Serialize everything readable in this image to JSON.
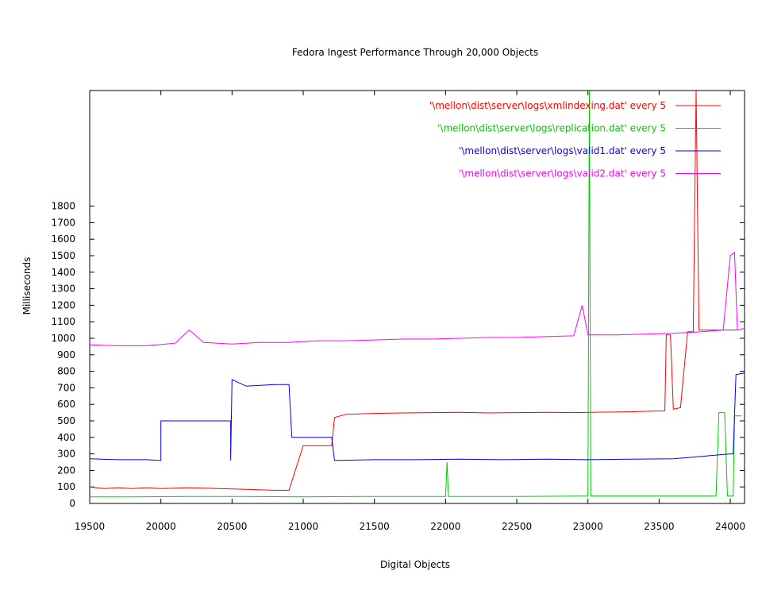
{
  "chart_data": {
    "type": "line",
    "title": "Fedora Ingest Performance Through 20,000 Objects",
    "xlabel": "Digital Objects",
    "ylabel": "Milliseconds",
    "xlim": [
      19500,
      24100
    ],
    "ylim": [
      0,
      2500
    ],
    "xticks": [
      19500,
      20000,
      20500,
      21000,
      21500,
      22000,
      22500,
      23000,
      23500,
      24000
    ],
    "yticks": [
      0,
      100,
      200,
      300,
      400,
      500,
      600,
      700,
      800,
      900,
      1000,
      1100,
      1200,
      1300,
      1400,
      1500,
      1600,
      1700,
      1800
    ],
    "grid": false,
    "legend_position": "top-right",
    "series": [
      {
        "name": "'\\mellon\\dist\\server\\logs\\xmlindexing.dat' every 5",
        "color": "#ff0000",
        "points": [
          [
            19500,
            100
          ],
          [
            19600,
            90
          ],
          [
            19700,
            95
          ],
          [
            19800,
            90
          ],
          [
            19900,
            95
          ],
          [
            20000,
            90
          ],
          [
            20200,
            95
          ],
          [
            20400,
            90
          ],
          [
            20600,
            85
          ],
          [
            20800,
            80
          ],
          [
            20900,
            80
          ],
          [
            21000,
            350
          ],
          [
            21100,
            350
          ],
          [
            21200,
            350
          ],
          [
            21220,
            520
          ],
          [
            21300,
            540
          ],
          [
            21500,
            545
          ],
          [
            21700,
            548
          ],
          [
            21900,
            550
          ],
          [
            22100,
            552
          ],
          [
            22300,
            548
          ],
          [
            22500,
            550
          ],
          [
            22700,
            552
          ],
          [
            22900,
            550
          ],
          [
            23100,
            553
          ],
          [
            23300,
            555
          ],
          [
            23500,
            560
          ],
          [
            23540,
            560
          ],
          [
            23550,
            1020
          ],
          [
            23580,
            1020
          ],
          [
            23600,
            570
          ],
          [
            23650,
            580
          ],
          [
            23700,
            1040
          ],
          [
            23740,
            1040
          ],
          [
            23760,
            2500
          ],
          [
            23780,
            1050
          ],
          [
            23900,
            1050
          ],
          [
            24050,
            1050
          ]
        ]
      },
      {
        "name": "'\\mellon\\dist\\server\\logs\\replication.dat' every 5",
        "color": "#00cc00",
        "points": [
          [
            19500,
            40
          ],
          [
            19800,
            40
          ],
          [
            20200,
            42
          ],
          [
            20600,
            42
          ],
          [
            21000,
            40
          ],
          [
            21400,
            42
          ],
          [
            21800,
            42
          ],
          [
            22000,
            42
          ],
          [
            22010,
            250
          ],
          [
            22020,
            42
          ],
          [
            22500,
            42
          ],
          [
            23000,
            45
          ],
          [
            23010,
            2500
          ],
          [
            23020,
            45
          ],
          [
            23500,
            45
          ],
          [
            23900,
            45
          ],
          [
            23920,
            550
          ],
          [
            23960,
            550
          ],
          [
            23980,
            45
          ],
          [
            24020,
            45
          ],
          [
            24030,
            530
          ],
          [
            24080,
            530
          ]
        ]
      },
      {
        "name": "'\\mellon\\dist\\server\\logs\\valid1.dat' every 5",
        "color": "#0000ff",
        "points": [
          [
            19500,
            270
          ],
          [
            19700,
            265
          ],
          [
            19900,
            265
          ],
          [
            20000,
            260
          ],
          [
            20000,
            500
          ],
          [
            20250,
            500
          ],
          [
            20490,
            500
          ],
          [
            20490,
            260
          ],
          [
            20500,
            750
          ],
          [
            20600,
            710
          ],
          [
            20800,
            720
          ],
          [
            20900,
            720
          ],
          [
            20920,
            400
          ],
          [
            21100,
            400
          ],
          [
            21200,
            400
          ],
          [
            21220,
            260
          ],
          [
            21500,
            265
          ],
          [
            21800,
            265
          ],
          [
            22100,
            268
          ],
          [
            22400,
            265
          ],
          [
            22700,
            268
          ],
          [
            23000,
            265
          ],
          [
            23300,
            268
          ],
          [
            23600,
            270
          ],
          [
            23800,
            285
          ],
          [
            24000,
            300
          ],
          [
            24020,
            300
          ],
          [
            24040,
            780
          ],
          [
            24100,
            790
          ]
        ]
      },
      {
        "name": "'\\mellon\\dist\\server\\logs\\valid2.dat' every 5",
        "color": "#ff00ff",
        "points": [
          [
            19500,
            960
          ],
          [
            19700,
            955
          ],
          [
            19900,
            955
          ],
          [
            20100,
            970
          ],
          [
            20200,
            1050
          ],
          [
            20300,
            975
          ],
          [
            20500,
            965
          ],
          [
            20700,
            975
          ],
          [
            20900,
            975
          ],
          [
            21100,
            985
          ],
          [
            21300,
            985
          ],
          [
            21500,
            990
          ],
          [
            21700,
            995
          ],
          [
            21900,
            995
          ],
          [
            22100,
            1000
          ],
          [
            22300,
            1005
          ],
          [
            22500,
            1005
          ],
          [
            22700,
            1010
          ],
          [
            22900,
            1015
          ],
          [
            22960,
            1200
          ],
          [
            23000,
            1020
          ],
          [
            23200,
            1020
          ],
          [
            23400,
            1025
          ],
          [
            23600,
            1030
          ],
          [
            23800,
            1040
          ],
          [
            23950,
            1050
          ],
          [
            24000,
            1500
          ],
          [
            24030,
            1520
          ],
          [
            24050,
            1050
          ],
          [
            24100,
            1060
          ]
        ]
      }
    ]
  }
}
